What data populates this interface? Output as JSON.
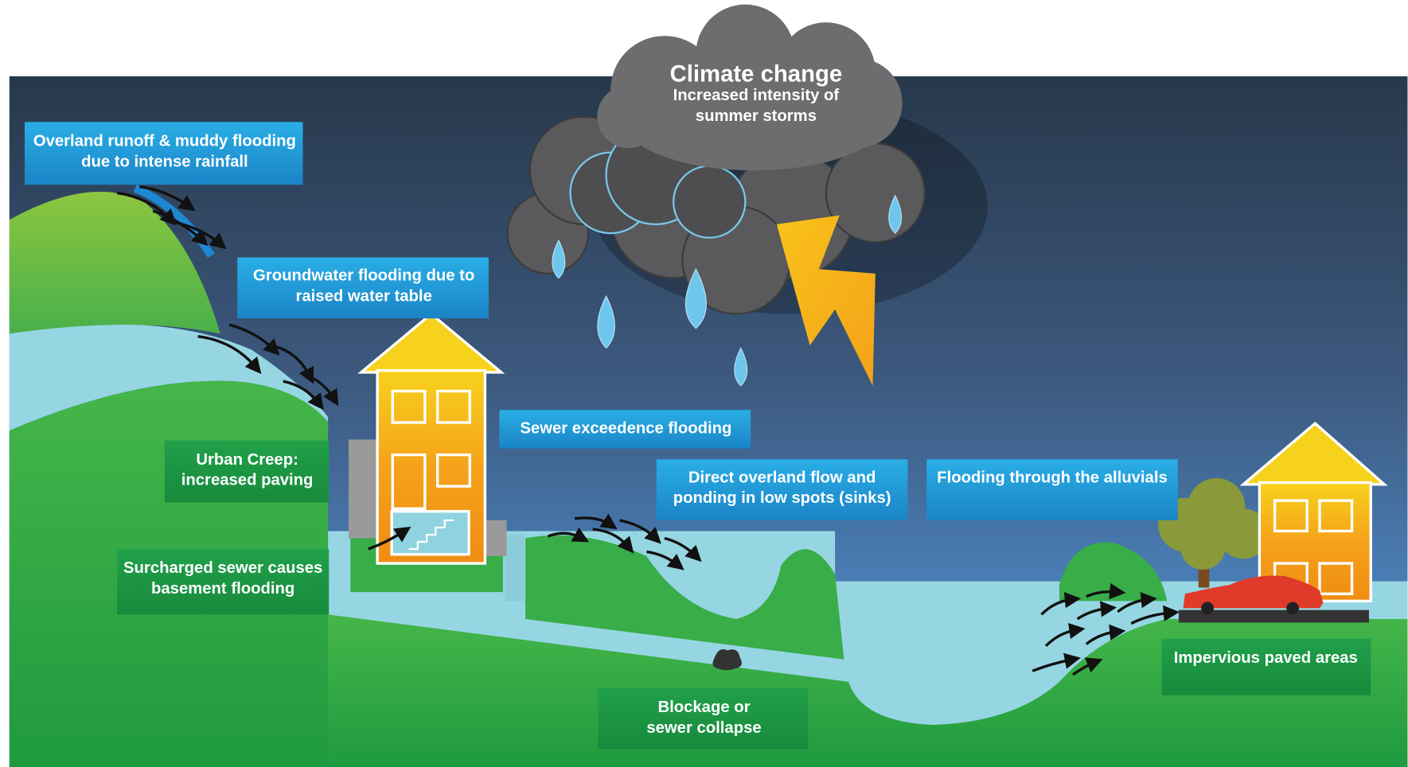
{
  "cloud": {
    "heading": "Climate change",
    "lines": [
      "Increased intensity of",
      "summer storms"
    ]
  },
  "labels": [
    {
      "lines": [
        "Overland runoff & muddy flooding",
        "due to intense rainfall"
      ]
    },
    {
      "lines": [
        "Groundwater flooding due to",
        "raised water table"
      ]
    },
    {
      "lines": [
        "Sewer exceedence flooding"
      ]
    },
    {
      "lines": [
        "Direct overland flow and",
        "ponding in low spots (sinks)"
      ]
    },
    {
      "lines": [
        "Flooding through the alluvials"
      ]
    },
    {
      "lines": [
        "Urban Creep:",
        "increased paving"
      ]
    },
    {
      "lines": [
        "Surcharged sewer causes",
        "basement flooding"
      ]
    },
    {
      "lines": [
        "Blockage or",
        "sewer collapse"
      ]
    },
    {
      "lines": [
        "Impervious paved areas"
      ]
    }
  ]
}
